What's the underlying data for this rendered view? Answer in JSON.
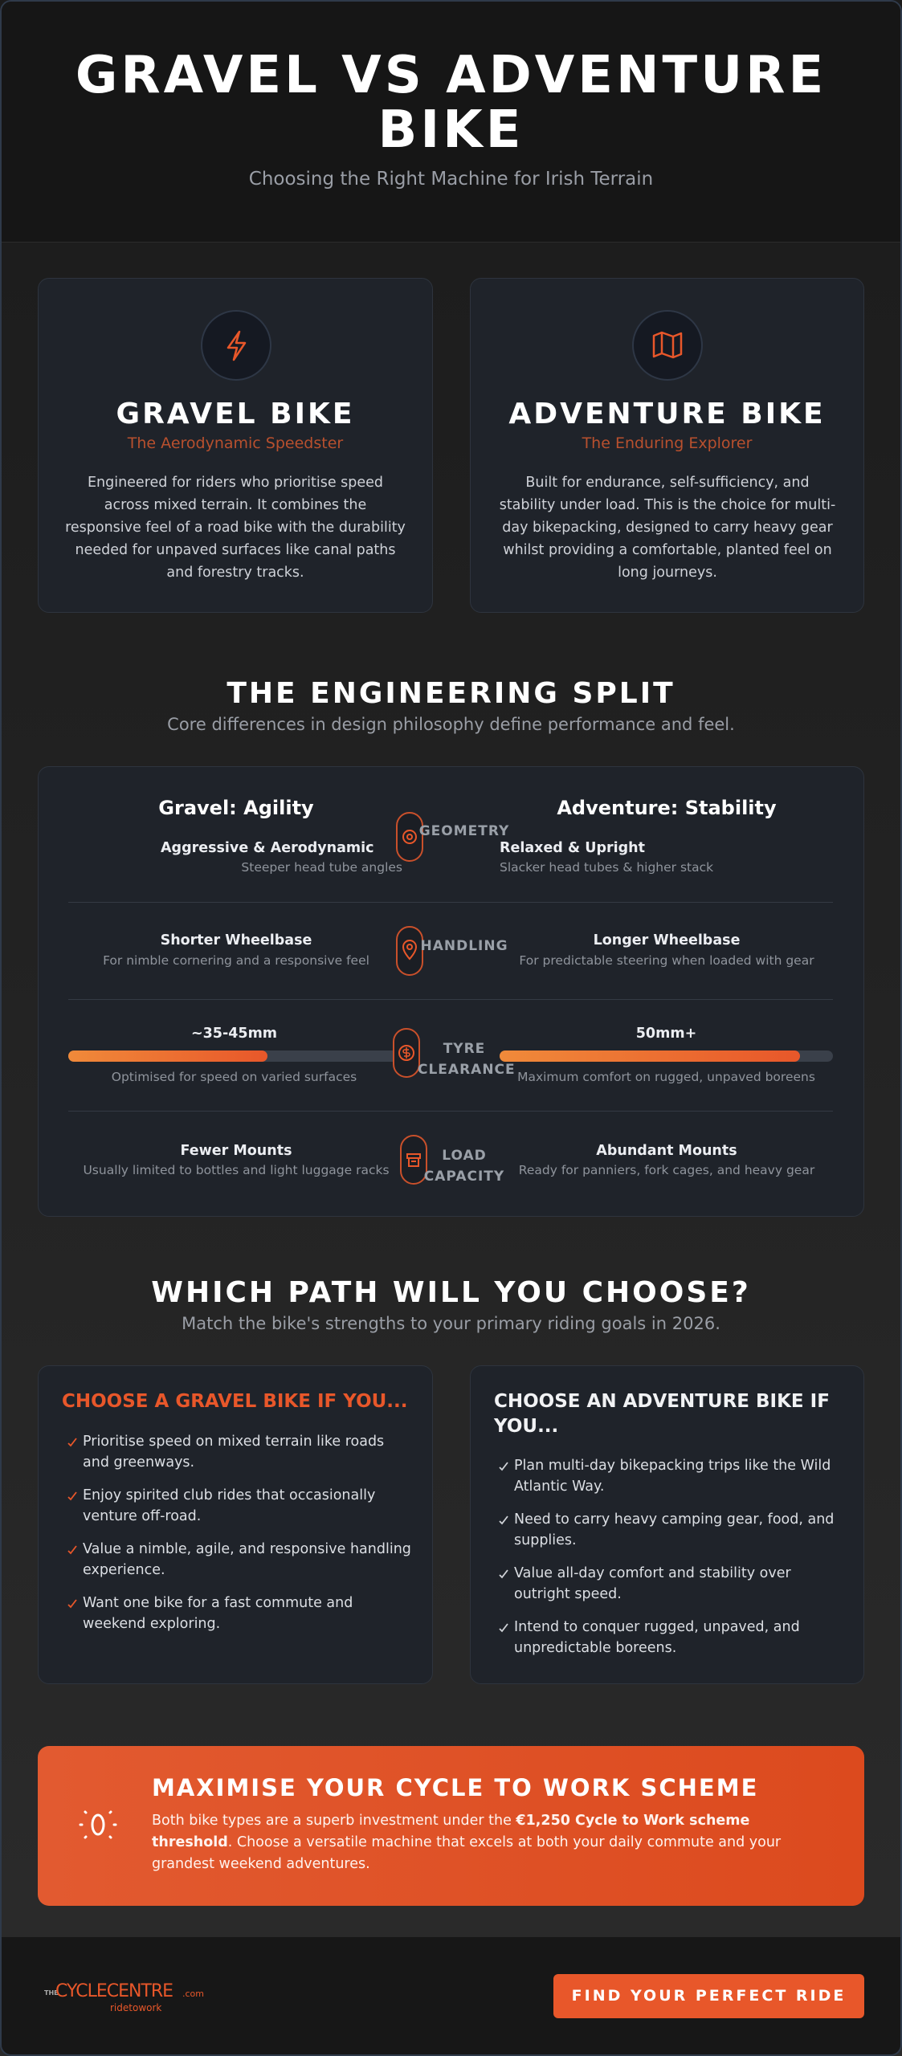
{
  "header": {
    "title": "GRAVEL VS ADVENTURE BIKE",
    "subtitle": "Choosing the Right Machine for Irish Terrain"
  },
  "bikes": [
    {
      "title": "GRAVEL BIKE",
      "tagline": "The Aerodynamic Speedster",
      "description": "Engineered for riders who prioritise speed across mixed terrain. It combines the responsive feel of a road bike with the durability needed for unpaved surfaces like canal paths and forestry tracks."
    },
    {
      "title": "ADVENTURE BIKE",
      "tagline": "The Enduring Explorer",
      "description": "Built for endurance, self-sufficiency, and stability under load. This is the choice for multi-day bikepacking, designed to carry heavy gear whilst providing a comfortable, planted feel on long journeys."
    }
  ],
  "split": {
    "title": "THE ENGINEERING SPLIT",
    "subtitle": "Core differences in design philosophy define performance and feel.",
    "left_heading": "Gravel: Agility",
    "right_heading": "Adventure: Stability",
    "rows": [
      {
        "label": "GEOMETRY",
        "left_title": "Aggressive & Aerodynamic",
        "left_text": "Steeper head tube angles",
        "right_title": "Relaxed & Upright",
        "right_text": "Slacker head tubes & higher stack"
      },
      {
        "label": "HANDLING",
        "left_title": "Shorter Wheelbase",
        "left_text": "For nimble cornering and a responsive feel",
        "right_title": "Longer Wheelbase",
        "right_text": "For predictable steering when loaded with gear"
      },
      {
        "label": "TYRE CLEARANCE",
        "left_title": "~35-45mm",
        "left_text": "Optimised for speed on varied surfaces",
        "right_title": "50mm+",
        "right_text": "Maximum comfort on rugged, unpaved boreens",
        "left_fill": 60,
        "right_fill": 90
      },
      {
        "label": "LOAD CAPACITY",
        "left_title": "Fewer Mounts",
        "left_text": "Usually limited to bottles and light luggage racks",
        "right_title": "Abundant Mounts",
        "right_text": "Ready for panniers, fork cages, and heavy gear"
      }
    ]
  },
  "choose": {
    "title": "WHICH PATH WILL YOU CHOOSE?",
    "subtitle": "Match the bike's strengths to your primary riding goals in 2026.",
    "options": [
      {
        "title": "CHOOSE A GRAVEL BIKE IF YOU...",
        "items": [
          "Prioritise speed on mixed terrain like roads and greenways.",
          "Enjoy spirited club rides that occasionally venture off-road.",
          "Value a nimble, agile, and responsive handling experience.",
          "Want one bike for a fast commute and weekend exploring."
        ]
      },
      {
        "title": "CHOOSE AN ADVENTURE BIKE IF YOU...",
        "items": [
          "Plan multi-day bikepacking trips like the Wild Atlantic Way.",
          "Need to carry heavy camping gear, food, and supplies.",
          "Value all-day comfort and stability over outright speed.",
          "Intend to conquer rugged, unpaved, and unpredictable boreens."
        ]
      }
    ]
  },
  "scheme": {
    "title": "MAXIMISE YOUR CYCLE TO WORK SCHEME",
    "text_before": "Both bike types are a superb investment under the ",
    "text_bold": "€1,250 Cycle to Work scheme threshold",
    "text_after": ". Choose a versatile machine that excels at both your daily commute and your grandest weekend adventures."
  },
  "footer": {
    "logo": {
      "prefix": "THE",
      "brand": "CYCLECENTRE",
      "domain": ".com",
      "tagline": "ridetowork"
    },
    "button": "FIND YOUR PERFECT RIDE"
  }
}
